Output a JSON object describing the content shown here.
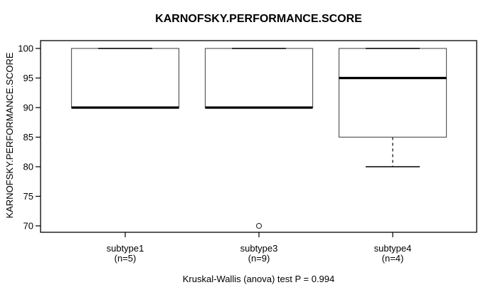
{
  "colors": {
    "background": "#ffffff",
    "frame": "#000000",
    "box_border": "#5a5a5a",
    "median_line": "#000000",
    "whisker_line": "#000000",
    "whisker_cap": "#000000",
    "outlier_stroke": "#2a2a2a",
    "text": "#000000"
  },
  "chart_data": {
    "type": "boxplot",
    "title": "KARNOFSKY.PERFORMANCE.SCORE",
    "ylabel": "KARNOFSKY.PERFORMANCE.SCORE",
    "xlabel": "",
    "caption": "Kruskal-Wallis (anova) test P = 0.994",
    "ylim": [
      70,
      100
    ],
    "yticks": [
      70,
      75,
      80,
      85,
      90,
      95,
      100
    ],
    "grid": false,
    "legend": null,
    "groups": [
      {
        "label": "subtype1",
        "sublabel": "(n=5)",
        "n": 5,
        "q1": 90,
        "median": 90,
        "q3": 100,
        "whisker_low": 90,
        "whisker_high": 100,
        "outliers": []
      },
      {
        "label": "subtype3",
        "sublabel": "(n=9)",
        "n": 9,
        "q1": 90,
        "median": 90,
        "q3": 100,
        "whisker_low": 90,
        "whisker_high": 100,
        "outliers": [
          70
        ]
      },
      {
        "label": "subtype4",
        "sublabel": "(n=4)",
        "n": 4,
        "q1": 85,
        "median": 95,
        "q3": 100,
        "whisker_low": 80,
        "whisker_high": 100,
        "outliers": []
      }
    ]
  }
}
